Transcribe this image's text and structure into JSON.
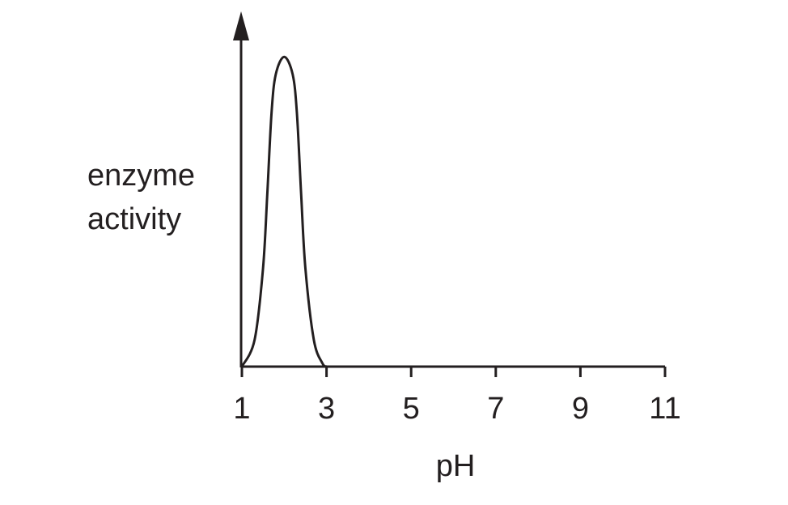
{
  "chart_data": {
    "type": "line",
    "xlabel": "pH",
    "ylabel": "enzyme activity",
    "xlim": [
      1,
      11
    ],
    "xticks": [
      1,
      3,
      5,
      7,
      9,
      11
    ],
    "ylim": [
      0,
      100
    ],
    "series": [
      {
        "color": "#231f20",
        "x": [
          1,
          1.3,
          1.5,
          1.6,
          1.7,
          1.8,
          2.0,
          2.2,
          2.3,
          2.4,
          2.5,
          2.7,
          2.9,
          3.0
        ],
        "values": [
          0,
          7.6,
          28,
          49,
          72,
          83,
          88,
          83,
          72,
          49,
          28,
          7.6,
          1,
          0
        ]
      }
    ]
  }
}
